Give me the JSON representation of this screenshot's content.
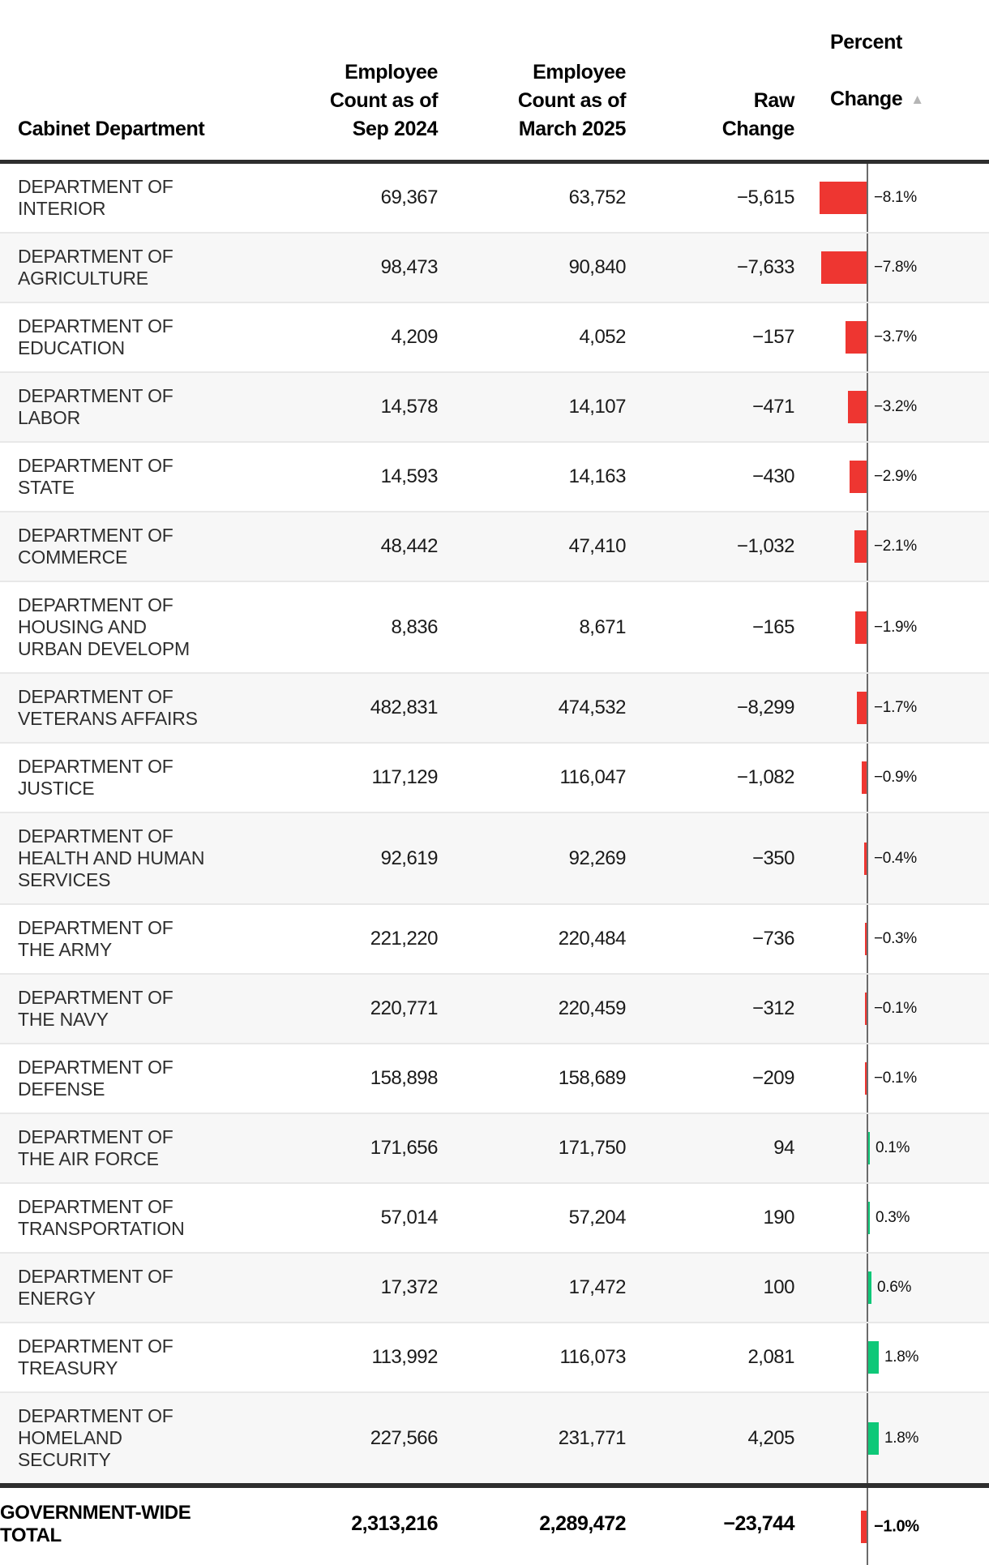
{
  "table": {
    "headers": {
      "department": "Cabinet Department",
      "sep_2024": "Employee\nCount as of\nSep 2024",
      "march_2025": "Employee\nCount as of\nMarch 2025",
      "raw_change": "Raw\nChange",
      "percent_line1": "Percent",
      "percent_line2": "Change",
      "sort_arrow": "▲"
    },
    "rows": [
      {
        "department": "DEPARTMENT OF INTERIOR",
        "sep_2024": "69,367",
        "march_2025": "63,752",
        "raw_change": "−5,615",
        "percent_change": -8.1,
        "percent_label": "−8.1%"
      },
      {
        "department": "DEPARTMENT OF AGRICULTURE",
        "sep_2024": "98,473",
        "march_2025": "90,840",
        "raw_change": "−7,633",
        "percent_change": -7.8,
        "percent_label": "−7.8%"
      },
      {
        "department": "DEPARTMENT OF EDUCATION",
        "sep_2024": "4,209",
        "march_2025": "4,052",
        "raw_change": "−157",
        "percent_change": -3.7,
        "percent_label": "−3.7%"
      },
      {
        "department": "DEPARTMENT OF LABOR",
        "sep_2024": "14,578",
        "march_2025": "14,107",
        "raw_change": "−471",
        "percent_change": -3.2,
        "percent_label": "−3.2%"
      },
      {
        "department": "DEPARTMENT OF STATE",
        "sep_2024": "14,593",
        "march_2025": "14,163",
        "raw_change": "−430",
        "percent_change": -2.9,
        "percent_label": "−2.9%"
      },
      {
        "department": "DEPARTMENT OF COMMERCE",
        "sep_2024": "48,442",
        "march_2025": "47,410",
        "raw_change": "−1,032",
        "percent_change": -2.1,
        "percent_label": "−2.1%"
      },
      {
        "department": "DEPARTMENT OF HOUSING AND URBAN DEVELOPM",
        "sep_2024": "8,836",
        "march_2025": "8,671",
        "raw_change": "−165",
        "percent_change": -1.9,
        "percent_label": "−1.9%"
      },
      {
        "department": "DEPARTMENT OF VETERANS AFFAIRS",
        "sep_2024": "482,831",
        "march_2025": "474,532",
        "raw_change": "−8,299",
        "percent_change": -1.7,
        "percent_label": "−1.7%"
      },
      {
        "department": "DEPARTMENT OF JUSTICE",
        "sep_2024": "117,129",
        "march_2025": "116,047",
        "raw_change": "−1,082",
        "percent_change": -0.9,
        "percent_label": "−0.9%"
      },
      {
        "department": "DEPARTMENT OF HEALTH AND HUMAN SERVICES",
        "sep_2024": "92,619",
        "march_2025": "92,269",
        "raw_change": "−350",
        "percent_change": -0.4,
        "percent_label": "−0.4%"
      },
      {
        "department": "DEPARTMENT OF THE ARMY",
        "sep_2024": "221,220",
        "march_2025": "220,484",
        "raw_change": "−736",
        "percent_change": -0.3,
        "percent_label": "−0.3%"
      },
      {
        "department": "DEPARTMENT OF THE NAVY",
        "sep_2024": "220,771",
        "march_2025": "220,459",
        "raw_change": "−312",
        "percent_change": -0.1,
        "percent_label": "−0.1%"
      },
      {
        "department": "DEPARTMENT OF DEFENSE",
        "sep_2024": "158,898",
        "march_2025": "158,689",
        "raw_change": "−209",
        "percent_change": -0.1,
        "percent_label": "−0.1%"
      },
      {
        "department": "DEPARTMENT OF THE AIR FORCE",
        "sep_2024": "171,656",
        "march_2025": "171,750",
        "raw_change": "94",
        "percent_change": 0.1,
        "percent_label": "0.1%"
      },
      {
        "department": "DEPARTMENT OF TRANSPORTATION",
        "sep_2024": "57,014",
        "march_2025": "57,204",
        "raw_change": "190",
        "percent_change": 0.3,
        "percent_label": "0.3%"
      },
      {
        "department": "DEPARTMENT OF ENERGY",
        "sep_2024": "17,372",
        "march_2025": "17,472",
        "raw_change": "100",
        "percent_change": 0.6,
        "percent_label": "0.6%"
      },
      {
        "department": "DEPARTMENT OF TREASURY",
        "sep_2024": "113,992",
        "march_2025": "116,073",
        "raw_change": "2,081",
        "percent_change": 1.8,
        "percent_label": "1.8%"
      },
      {
        "department": "DEPARTMENT OF HOMELAND SECURITY",
        "sep_2024": "227,566",
        "march_2025": "231,771",
        "raw_change": "4,205",
        "percent_change": 1.8,
        "percent_label": "1.8%"
      }
    ],
    "total": {
      "department": "GOVERNMENT-WIDE TOTAL",
      "sep_2024": "2,313,216",
      "march_2025": "2,289,472",
      "raw_change": "−23,744",
      "percent_change": -1.0,
      "percent_label": "−1.0%"
    }
  },
  "colors": {
    "negative_bar": "#ee3631",
    "positive_bar": "#0ec878",
    "axis_line": "#6b6b6b",
    "zebra_row": "#f7f7f7",
    "heavy_rule": "#2e2e2e",
    "sort_arrow": "#b5b5b5"
  },
  "chart_data": {
    "type": "table",
    "title": "",
    "columns": [
      "Cabinet Department",
      "Employee Count as of Sep 2024",
      "Employee Count as of March 2025",
      "Raw Change",
      "Percent Change"
    ],
    "sort": {
      "column": "Percent Change",
      "direction": "ascending"
    },
    "embedded_bar_chart": {
      "column": "Percent Change",
      "axis_at_zero": true,
      "xlim": [
        -8.5,
        2.5
      ],
      "negative_color": "#ee3631",
      "positive_color": "#0ec878"
    },
    "rows": [
      [
        "DEPARTMENT OF INTERIOR",
        69367,
        63752,
        -5615,
        -8.1
      ],
      [
        "DEPARTMENT OF AGRICULTURE",
        98473,
        90840,
        -7633,
        -7.8
      ],
      [
        "DEPARTMENT OF EDUCATION",
        4209,
        4052,
        -157,
        -3.7
      ],
      [
        "DEPARTMENT OF LABOR",
        14578,
        14107,
        -471,
        -3.2
      ],
      [
        "DEPARTMENT OF STATE",
        14593,
        14163,
        -430,
        -2.9
      ],
      [
        "DEPARTMENT OF COMMERCE",
        48442,
        47410,
        -1032,
        -2.1
      ],
      [
        "DEPARTMENT OF HOUSING AND URBAN DEVELOPM",
        8836,
        8671,
        -165,
        -1.9
      ],
      [
        "DEPARTMENT OF VETERANS AFFAIRS",
        482831,
        474532,
        -8299,
        -1.7
      ],
      [
        "DEPARTMENT OF JUSTICE",
        117129,
        116047,
        -1082,
        -0.9
      ],
      [
        "DEPARTMENT OF HEALTH AND HUMAN SERVICES",
        92619,
        92269,
        -350,
        -0.4
      ],
      [
        "DEPARTMENT OF THE ARMY",
        221220,
        220484,
        -736,
        -0.3
      ],
      [
        "DEPARTMENT OF THE NAVY",
        220771,
        220459,
        -312,
        -0.1
      ],
      [
        "DEPARTMENT OF DEFENSE",
        158898,
        158689,
        -209,
        -0.1
      ],
      [
        "DEPARTMENT OF THE AIR FORCE",
        171656,
        171750,
        94,
        0.1
      ],
      [
        "DEPARTMENT OF TRANSPORTATION",
        57014,
        57204,
        190,
        0.3
      ],
      [
        "DEPARTMENT OF ENERGY",
        17372,
        17472,
        100,
        0.6
      ],
      [
        "DEPARTMENT OF TREASURY",
        113992,
        116073,
        2081,
        1.8
      ],
      [
        "DEPARTMENT OF HOMELAND SECURITY",
        227566,
        231771,
        4205,
        1.8
      ],
      [
        "GOVERNMENT-WIDE TOTAL",
        2313216,
        2289472,
        -23744,
        -1.0
      ]
    ]
  }
}
